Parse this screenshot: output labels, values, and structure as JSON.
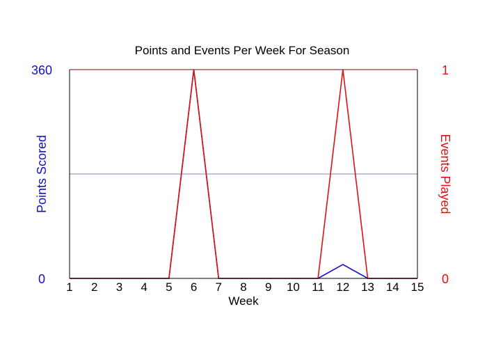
{
  "chart_data": {
    "type": "line",
    "title": "Points and Events Per Week For Season",
    "xlabel": "Week",
    "ylabel_left": "Points Scored",
    "ylabel_right": "Events Played",
    "x": [
      1,
      2,
      3,
      4,
      5,
      6,
      7,
      8,
      9,
      10,
      11,
      12,
      13,
      14,
      15
    ],
    "x_tick_labels": [
      "1",
      "2",
      "3",
      "4",
      "5",
      "6",
      "7",
      "8",
      "9",
      "10",
      "11",
      "12",
      "13",
      "14",
      "15"
    ],
    "ylim_left": [
      0,
      360
    ],
    "ylim_right": [
      0,
      1
    ],
    "y_left_tick_labels": [
      "0",
      "360"
    ],
    "y_right_tick_labels": [
      "0",
      "1"
    ],
    "gridline_left_value": 180,
    "series": [
      {
        "axis": "left",
        "color": "#1010c8",
        "values": [
          0,
          0,
          0,
          0,
          0,
          360,
          0,
          0,
          0,
          0,
          0,
          24,
          0,
          0,
          0
        ]
      },
      {
        "axis": "right",
        "color": "#e01010",
        "values": [
          0,
          0,
          0,
          0,
          0,
          1,
          0,
          0,
          0,
          0,
          0,
          1,
          0,
          0,
          0
        ]
      }
    ],
    "colors": {
      "plot_border": "#800000",
      "gridline": "#8080c0",
      "left_axis": "#1010c8",
      "right_axis": "#e01010"
    }
  }
}
